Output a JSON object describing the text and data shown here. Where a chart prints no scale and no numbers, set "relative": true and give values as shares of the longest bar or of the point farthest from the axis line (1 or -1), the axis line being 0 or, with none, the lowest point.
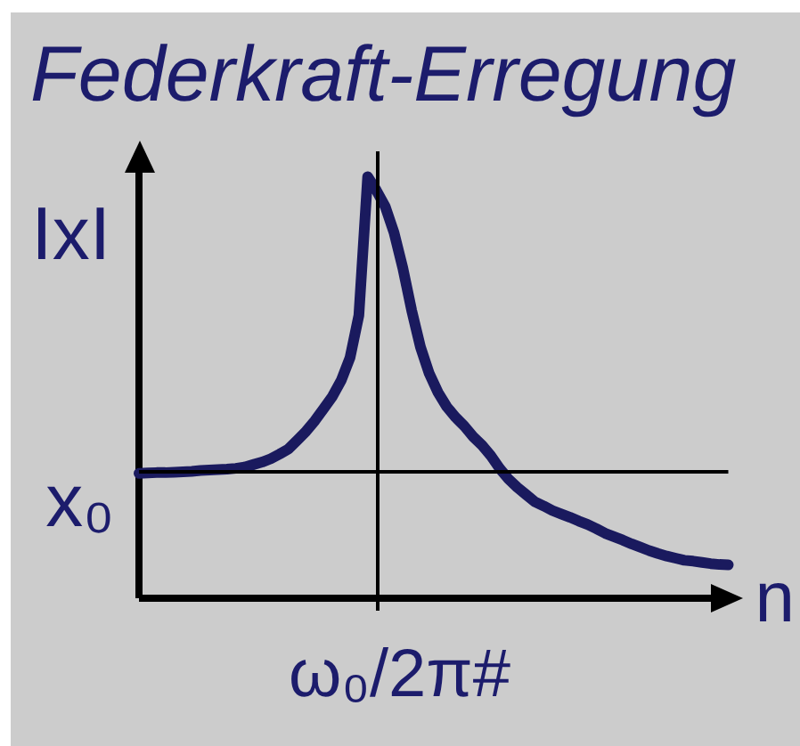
{
  "chart_data": {
    "type": "line",
    "title": "Federkraft-Erregung",
    "xlabel": "n",
    "ylabel": "IxI",
    "relative": true,
    "categories": [
      null,
      null,
      null,
      null,
      null,
      null,
      null,
      null,
      null,
      null,
      null,
      null,
      null,
      null,
      null,
      null,
      null,
      null,
      null,
      null,
      null,
      null,
      null,
      null,
      null,
      null,
      null,
      null,
      null,
      null,
      null,
      null,
      null,
      null,
      null,
      null,
      null,
      null,
      null,
      null,
      null,
      null,
      null,
      null,
      null,
      null,
      null,
      null,
      null,
      null,
      null,
      null,
      null,
      null,
      null,
      null,
      null,
      null,
      null,
      null,
      null,
      null,
      null,
      null,
      null,
      null,
      null,
      null
    ],
    "values": [
      0.296,
      0.297,
      0.298,
      0.298,
      0.299,
      0.3,
      0.301,
      0.303,
      0.304,
      0.305,
      0.306,
      0.308,
      0.311,
      0.317,
      0.323,
      0.331,
      0.342,
      0.354,
      0.375,
      0.396,
      0.421,
      0.45,
      0.479,
      0.517,
      0.571,
      0.671,
      1,
      0.967,
      0.929,
      0.867,
      0.783,
      0.683,
      0.596,
      0.533,
      0.488,
      0.454,
      0.429,
      0.408,
      0.383,
      0.363,
      0.338,
      0.308,
      0.283,
      0.263,
      0.246,
      0.229,
      0.219,
      0.208,
      0.2,
      0.192,
      0.183,
      0.175,
      0.165,
      0.154,
      0.146,
      0.138,
      0.129,
      0.121,
      0.113,
      0.106,
      0.1,
      0.095,
      0.09,
      0.088,
      0.085,
      0.082,
      0.08,
      0.079
    ],
    "color": "#1a1a5e",
    "ref_lines": [
      {
        "axis": "y",
        "value": 0.3,
        "label": "x₀",
        "color": "#000000"
      }
    ],
    "annotations": [
      "ω₀/2π#"
    ]
  }
}
